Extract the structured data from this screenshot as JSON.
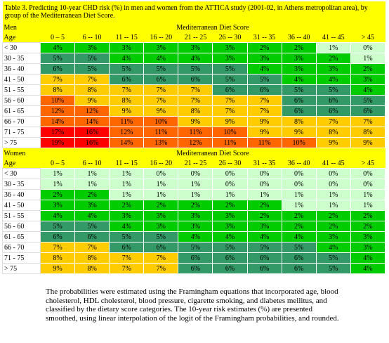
{
  "caption": "Table 3. Predicting 10-year CHD risk (%) in men and women from the ATTICA study (2001-02, in Athens metropolitan area), by group of the Mediterranean Diet Score.",
  "header_color": "#ffff00",
  "sections": [
    {
      "group": "Men",
      "score_label": "Mediterranean Diet Score",
      "age_label": "Age",
      "columns": [
        "0 – 5",
        "6 -- 10",
        "11 -- 15",
        "16 -- 20",
        "21 -- 25",
        "26 -- 30",
        "31 -- 35",
        "36 -- 40",
        "41 -- 45",
        "> 45"
      ],
      "rows": [
        {
          "age": "< 30",
          "cells": [
            "4%",
            "3%",
            "3%",
            "3%",
            "3%",
            "3%",
            "2%",
            "2%",
            "1%",
            "0%"
          ],
          "colors": [
            "#00cc00",
            "#00cc00",
            "#00cc00",
            "#00cc00",
            "#00cc00",
            "#00cc00",
            "#00cc00",
            "#00cc00",
            "#ccffcc",
            "#ccffcc"
          ]
        },
        {
          "age": "30 - 35",
          "cells": [
            "5%",
            "5%",
            "4%",
            "4%",
            "4%",
            "3%",
            "3%",
            "3%",
            "2%",
            "1%"
          ],
          "colors": [
            "#339966",
            "#339966",
            "#00cc00",
            "#00cc00",
            "#00cc00",
            "#00cc00",
            "#00cc00",
            "#00cc00",
            "#00cc00",
            "#ccffcc"
          ]
        },
        {
          "age": "36 - 40",
          "cells": [
            "6%",
            "5%",
            "5%",
            "5%",
            "5%",
            "5%",
            "4%",
            "3%",
            "3%",
            "2%"
          ],
          "colors": [
            "#339966",
            "#339966",
            "#339966",
            "#339966",
            "#339966",
            "#339966",
            "#00cc00",
            "#00cc00",
            "#00cc00",
            "#00cc00"
          ]
        },
        {
          "age": "41 - 50",
          "cells": [
            "7%",
            "7%",
            "6%",
            "6%",
            "6%",
            "5%",
            "5%",
            "4%",
            "4%",
            "3%"
          ],
          "colors": [
            "#ffcc00",
            "#ffcc00",
            "#339966",
            "#339966",
            "#339966",
            "#339966",
            "#339966",
            "#00cc00",
            "#00cc00",
            "#00cc00"
          ]
        },
        {
          "age": "51 - 55",
          "cells": [
            "8%",
            "8%",
            "7%",
            "7%",
            "7%",
            "6%",
            "6%",
            "5%",
            "5%",
            "4%"
          ],
          "colors": [
            "#ffcc00",
            "#ffcc00",
            "#ffcc00",
            "#ffcc00",
            "#ffcc00",
            "#339966",
            "#339966",
            "#339966",
            "#339966",
            "#00cc00"
          ]
        },
        {
          "age": "56 - 60",
          "cells": [
            "10%",
            "9%",
            "8%",
            "7%",
            "7%",
            "7%",
            "7%",
            "6%",
            "6%",
            "5%"
          ],
          "colors": [
            "#ff6600",
            "#ffcc00",
            "#ffcc00",
            "#ffcc00",
            "#ffcc00",
            "#ffcc00",
            "#ffcc00",
            "#339966",
            "#339966",
            "#339966"
          ]
        },
        {
          "age": "61 - 65",
          "cells": [
            "12%",
            "12%",
            "9%",
            "9%",
            "8%",
            "7%",
            "7%",
            "6%",
            "6%",
            "6%"
          ],
          "colors": [
            "#ff6600",
            "#ff6600",
            "#ffcc00",
            "#ffcc00",
            "#ffcc00",
            "#ffcc00",
            "#ffcc00",
            "#339966",
            "#339966",
            "#339966"
          ]
        },
        {
          "age": "66 - 70",
          "cells": [
            "14%",
            "14%",
            "11%",
            "10%",
            "9%",
            "9%",
            "9%",
            "8%",
            "7%",
            "7%"
          ],
          "colors": [
            "#ff6600",
            "#ff6600",
            "#ff6600",
            "#ff6600",
            "#ffcc00",
            "#ffcc00",
            "#ffcc00",
            "#ffcc00",
            "#ffcc00",
            "#ffcc00"
          ]
        },
        {
          "age": "71 - 75",
          "cells": [
            "17%",
            "16%",
            "12%",
            "11%",
            "11%",
            "10%",
            "9%",
            "9%",
            "8%",
            "8%"
          ],
          "colors": [
            "#ff0000",
            "#ff0000",
            "#ff6600",
            "#ff6600",
            "#ff6600",
            "#ff6600",
            "#ffcc00",
            "#ffcc00",
            "#ffcc00",
            "#ffcc00"
          ]
        },
        {
          "age": "> 75",
          "cells": [
            "19%",
            "16%",
            "14%",
            "13%",
            "12%",
            "11%",
            "11%",
            "10%",
            "9%",
            "9%"
          ],
          "colors": [
            "#ff0000",
            "#ff0000",
            "#ff6600",
            "#ff6600",
            "#ff6600",
            "#ff6600",
            "#ff6600",
            "#ff6600",
            "#ffcc00",
            "#ffcc00"
          ]
        }
      ]
    },
    {
      "group": "Women",
      "score_label": "Mediterranean Diet Score",
      "age_label": "Age",
      "columns": [
        "0 – 5",
        "6 -- 10",
        "11 -- 15",
        "16 -- 20",
        "21 -- 25",
        "26 -- 30",
        "31 -- 35",
        "36 -- 40",
        "41 -- 45",
        "> 45"
      ],
      "rows": [
        {
          "age": "< 30",
          "cells": [
            "1%",
            "1%",
            "1%",
            "0%",
            "0%",
            "0%",
            "0%",
            "0%",
            "0%",
            "0%"
          ],
          "colors": [
            "#ccffcc",
            "#ccffcc",
            "#ccffcc",
            "#ccffcc",
            "#ccffcc",
            "#ccffcc",
            "#ccffcc",
            "#ccffcc",
            "#ccffcc",
            "#ccffcc"
          ]
        },
        {
          "age": "30 - 35",
          "cells": [
            "1%",
            "1%",
            "1%",
            "1%",
            "1%",
            "0%",
            "0%",
            "0%",
            "0%",
            "0%"
          ],
          "colors": [
            "#ccffcc",
            "#ccffcc",
            "#ccffcc",
            "#ccffcc",
            "#ccffcc",
            "#ccffcc",
            "#ccffcc",
            "#ccffcc",
            "#ccffcc",
            "#ccffcc"
          ]
        },
        {
          "age": "36 - 40",
          "cells": [
            "2%",
            "2%",
            "1%",
            "1%",
            "1%",
            "1%",
            "1%",
            "1%",
            "1%",
            "1%"
          ],
          "colors": [
            "#00cc00",
            "#00cc00",
            "#ccffcc",
            "#ccffcc",
            "#ccffcc",
            "#ccffcc",
            "#ccffcc",
            "#ccffcc",
            "#ccffcc",
            "#ccffcc"
          ]
        },
        {
          "age": "41 - 50",
          "cells": [
            "3%",
            "3%",
            "2%",
            "2%",
            "2%",
            "2%",
            "2%",
            "1%",
            "1%",
            "1%"
          ],
          "colors": [
            "#00cc00",
            "#00cc00",
            "#00cc00",
            "#00cc00",
            "#00cc00",
            "#00cc00",
            "#00cc00",
            "#ccffcc",
            "#ccffcc",
            "#ccffcc"
          ]
        },
        {
          "age": "51 - 55",
          "cells": [
            "4%",
            "4%",
            "3%",
            "3%",
            "3%",
            "3%",
            "2%",
            "2%",
            "2%",
            "2%"
          ],
          "colors": [
            "#00cc00",
            "#00cc00",
            "#00cc00",
            "#00cc00",
            "#00cc00",
            "#00cc00",
            "#00cc00",
            "#00cc00",
            "#00cc00",
            "#00cc00"
          ]
        },
        {
          "age": "56 - 60",
          "cells": [
            "5%",
            "5%",
            "4%",
            "3%",
            "3%",
            "3%",
            "3%",
            "2%",
            "2%",
            "2%"
          ],
          "colors": [
            "#339966",
            "#339966",
            "#00cc00",
            "#00cc00",
            "#00cc00",
            "#00cc00",
            "#00cc00",
            "#00cc00",
            "#00cc00",
            "#00cc00"
          ]
        },
        {
          "age": "61 - 65",
          "cells": [
            "6%",
            "6%",
            "5%",
            "5%",
            "4%",
            "4%",
            "4%",
            "4%",
            "3%",
            "3%"
          ],
          "colors": [
            "#339966",
            "#339966",
            "#339966",
            "#339966",
            "#00cc00",
            "#00cc00",
            "#00cc00",
            "#00cc00",
            "#00cc00",
            "#00cc00"
          ]
        },
        {
          "age": "66 - 70",
          "cells": [
            "7%",
            "7%",
            "6%",
            "6%",
            "5%",
            "5%",
            "5%",
            "5%",
            "4%",
            "3%"
          ],
          "colors": [
            "#ffcc00",
            "#ffcc00",
            "#339966",
            "#339966",
            "#339966",
            "#339966",
            "#339966",
            "#339966",
            "#00cc00",
            "#00cc00"
          ]
        },
        {
          "age": "71 - 75",
          "cells": [
            "8%",
            "8%",
            "7%",
            "7%",
            "6%",
            "6%",
            "6%",
            "6%",
            "5%",
            "4%"
          ],
          "colors": [
            "#ffcc00",
            "#ffcc00",
            "#ffcc00",
            "#ffcc00",
            "#339966",
            "#339966",
            "#339966",
            "#339966",
            "#339966",
            "#00cc00"
          ]
        },
        {
          "age": "> 75",
          "cells": [
            "9%",
            "8%",
            "7%",
            "7%",
            "6%",
            "6%",
            "6%",
            "6%",
            "5%",
            "4%"
          ],
          "colors": [
            "#ffcc00",
            "#ffcc00",
            "#ffcc00",
            "#ffcc00",
            "#339966",
            "#339966",
            "#339966",
            "#339966",
            "#339966",
            "#00cc00"
          ]
        }
      ]
    }
  ],
  "note": "The probabilities were estimated using the Framingham equations that incorporated age, blood cholesterol, HDL cholesterol, blood pressure, cigarette smoking, and diabetes mellitus, and classified by the dietary score categories.  The 10-year risk estimates (%) are presented smoothed, using linear interpolation of the logit of the Framingham probabilities, and rounded."
}
